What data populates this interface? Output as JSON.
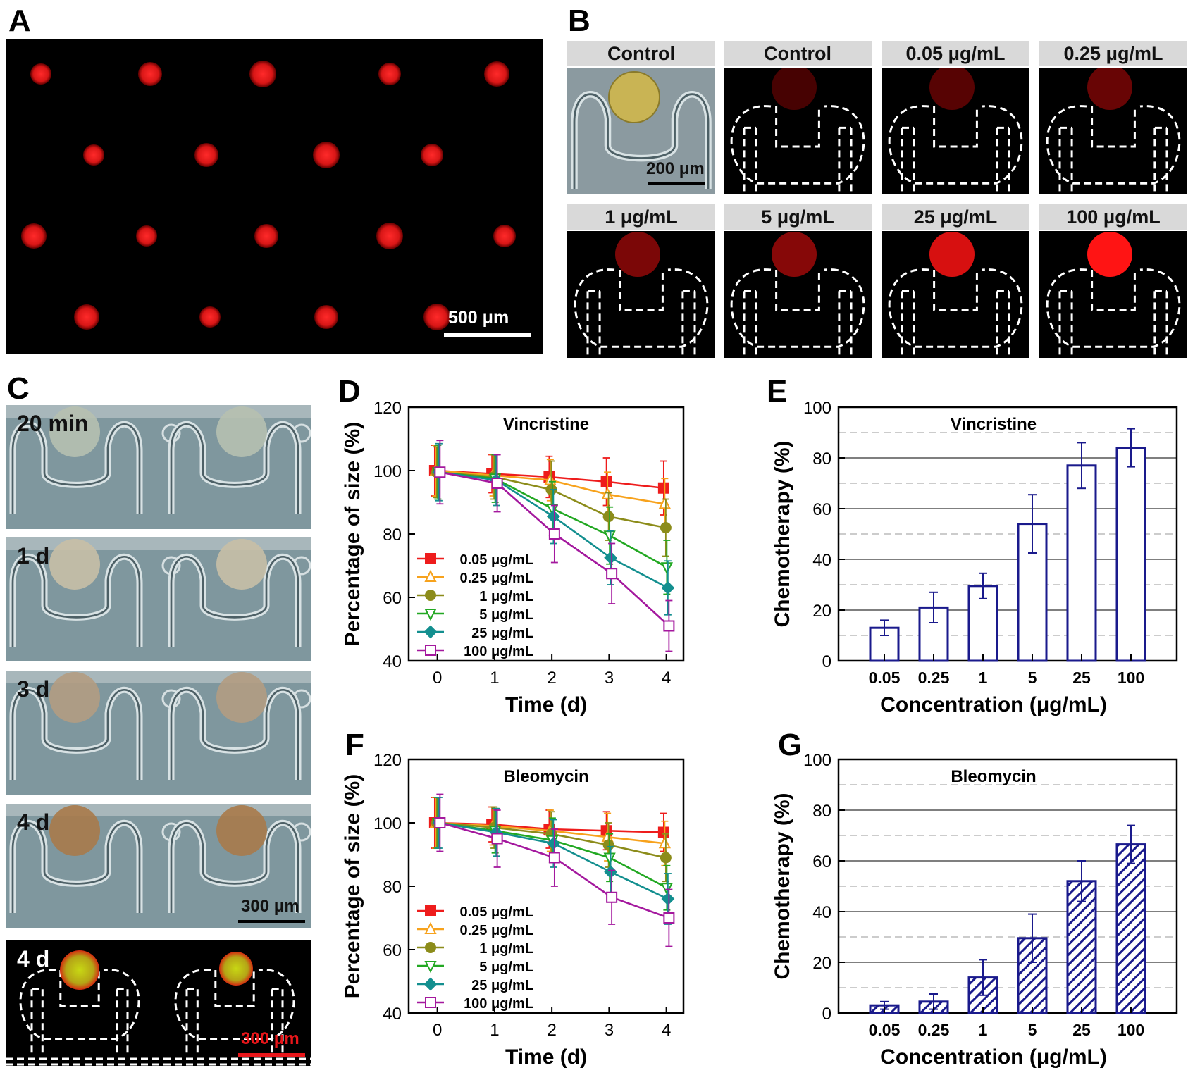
{
  "panels": {
    "A": {
      "letter": "A",
      "scale_bar": "500 μm"
    },
    "B": {
      "letter": "B",
      "labels": [
        "Control",
        "Control",
        "0.05 μg/mL",
        "0.25 μg/mL",
        "1 μg/mL",
        "5 μg/mL",
        "25 μg/mL",
        "100 μg/mL"
      ],
      "scale_bar": "200 μm",
      "fluorescence_intensity": [
        0.0,
        0.15,
        0.25,
        0.35,
        0.45,
        0.5,
        0.85,
        1.0
      ]
    },
    "C": {
      "letter": "C",
      "labels": [
        "20 min",
        "1 d",
        "3 d",
        "4 d",
        "4 d"
      ],
      "scale_bar_1": "300 μm",
      "scale_bar_2": "300 μm"
    },
    "D": {
      "letter": "D"
    },
    "E": {
      "letter": "E"
    },
    "F": {
      "letter": "F"
    },
    "G": {
      "letter": "G"
    }
  },
  "colors": {
    "s005": "#ee1c1c",
    "s025": "#f7a21c",
    "s1": "#8c8c1a",
    "s5": "#22a822",
    "s25": "#138f8f",
    "s100": "#a4189e",
    "bar": "#1a1a8c",
    "fluor": "#e8161a"
  },
  "chart_data": [
    {
      "id": "D",
      "type": "line",
      "title": "Vincristine",
      "xlabel": "Time (d)",
      "ylabel": "Percentage of size (%)",
      "x": [
        0,
        1,
        2,
        3,
        4
      ],
      "xlim": [
        -0.5,
        4.3
      ],
      "ylim": [
        40,
        120
      ],
      "xticks": [
        0,
        1,
        2,
        3,
        4
      ],
      "yticks": [
        40,
        60,
        80,
        100,
        120
      ],
      "legend_position": "bottom-left",
      "series": [
        {
          "name": "0.05 μg/mL",
          "values": [
            100,
            99,
            98,
            96.5,
            94.5
          ],
          "errors": [
            8,
            6,
            6.5,
            7.5,
            8.5
          ],
          "marker": "square-filled",
          "color_key": "s005"
        },
        {
          "name": "0.25 μg/mL",
          "values": [
            100,
            98.5,
            97,
            92.5,
            89.5
          ],
          "errors": [
            8,
            6.5,
            6.5,
            7,
            8
          ],
          "marker": "triangle-up-open",
          "color_key": "s025"
        },
        {
          "name": "1 μg/mL",
          "values": [
            99.5,
            98,
            94,
            85.5,
            82
          ],
          "errors": [
            8,
            7,
            9,
            7.5,
            9
          ],
          "marker": "circle-filled",
          "color_key": "s1"
        },
        {
          "name": "5 μg/mL",
          "values": [
            99.5,
            97.5,
            88,
            79.5,
            69.5
          ],
          "errors": [
            8.5,
            7.5,
            8.5,
            9,
            8.5
          ],
          "marker": "triangle-down-open",
          "color_key": "s5"
        },
        {
          "name": "25 μg/mL",
          "values": [
            99.5,
            97,
            85.5,
            72.5,
            63
          ],
          "errors": [
            9,
            8,
            8.5,
            8.5,
            8.5
          ],
          "marker": "diamond-filled",
          "color_key": "s25"
        },
        {
          "name": "100 μg/mL",
          "values": [
            99.5,
            96,
            80,
            67.5,
            51
          ],
          "errors": [
            10,
            9,
            9,
            9.5,
            8
          ],
          "marker": "square-open",
          "color_key": "s100"
        }
      ]
    },
    {
      "id": "E",
      "type": "bar",
      "title": "Vincristine",
      "xlabel": "Concentration (μg/mL)",
      "ylabel": "Chemotherapy (%)",
      "categories": [
        "0.05",
        "0.25",
        "1",
        "5",
        "25",
        "100"
      ],
      "values": [
        13,
        21,
        29.5,
        54,
        77,
        84
      ],
      "errors": [
        3,
        6,
        5,
        11.5,
        9,
        7.5
      ],
      "ylim": [
        0,
        100
      ],
      "yticks": [
        0,
        20,
        40,
        60,
        80,
        100
      ],
      "fill": "open",
      "grid": "major solid, minor dashed"
    },
    {
      "id": "F",
      "type": "line",
      "title": "Bleomycin",
      "xlabel": "Time (d)",
      "ylabel": "Percentage of size (%)",
      "x": [
        0,
        1,
        2,
        3,
        4
      ],
      "xlim": [
        -0.5,
        4.3
      ],
      "ylim": [
        40,
        120
      ],
      "xticks": [
        0,
        1,
        2,
        3,
        4
      ],
      "yticks": [
        40,
        60,
        80,
        100,
        120
      ],
      "legend_position": "bottom-left",
      "series": [
        {
          "name": "0.05 μg/mL",
          "values": [
            100,
            99.5,
            98,
            97.5,
            97
          ],
          "errors": [
            8,
            5.5,
            6,
            6,
            6
          ],
          "marker": "square-filled",
          "color_key": "s005"
        },
        {
          "name": "0.25 μg/mL",
          "values": [
            100,
            99,
            97.5,
            95.5,
            93.5
          ],
          "errors": [
            8,
            6,
            6.5,
            7.5,
            7
          ],
          "marker": "triangle-up-open",
          "color_key": "s025"
        },
        {
          "name": "1 μg/mL",
          "values": [
            100,
            98.5,
            96.5,
            93,
            89
          ],
          "errors": [
            8,
            6.5,
            7,
            7,
            7.5
          ],
          "marker": "circle-filled",
          "color_key": "s1"
        },
        {
          "name": "5 μg/mL",
          "values": [
            100,
            97.5,
            94.5,
            89,
            79.5
          ],
          "errors": [
            8,
            7,
            7,
            7.5,
            7
          ],
          "marker": "triangle-down-open",
          "color_key": "s5"
        },
        {
          "name": "25 μg/mL",
          "values": [
            100,
            97,
            93.5,
            84.5,
            76
          ],
          "errors": [
            8,
            7.5,
            7.5,
            8,
            8
          ],
          "marker": "diamond-filled",
          "color_key": "s25"
        },
        {
          "name": "100 μg/mL",
          "values": [
            100,
            95,
            89,
            76.5,
            70
          ],
          "errors": [
            9,
            9,
            9,
            8.5,
            9
          ],
          "marker": "square-open",
          "color_key": "s100"
        }
      ]
    },
    {
      "id": "G",
      "type": "bar",
      "title": "Bleomycin",
      "xlabel": "Concentration (μg/mL)",
      "ylabel": "Chemotherapy (%)",
      "categories": [
        "0.05",
        "0.25",
        "1",
        "5",
        "25",
        "100"
      ],
      "values": [
        3,
        4.5,
        14,
        29.5,
        52,
        66.5
      ],
      "errors": [
        1.5,
        3,
        7,
        9.5,
        8,
        7.5
      ],
      "ylim": [
        0,
        100
      ],
      "yticks": [
        0,
        20,
        40,
        60,
        80,
        100
      ],
      "fill": "hatched",
      "grid": "major solid, minor dashed"
    }
  ]
}
